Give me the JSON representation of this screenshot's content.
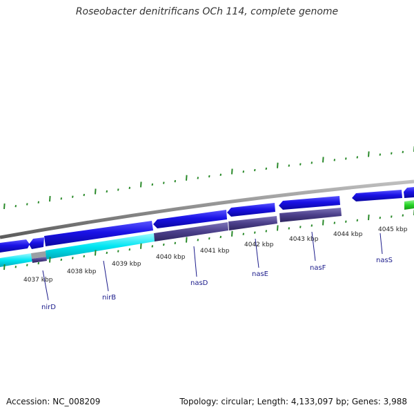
{
  "title": "Roseobacter denitrificans OCh 114, complete genome",
  "accession": "Accession: NC_008209",
  "stats": "Topology: circular; Length: 4,133,097 bp; Genes: 3,988",
  "colors": {
    "backbone": "#8c8c8c",
    "forward_cds": "#1a12e6",
    "reverse_cds": "#1a12e6",
    "rna": "#26d426",
    "nir_track": "#00e0ee",
    "nas_track": "#4b3f8a",
    "tick": "#2a8a2a",
    "label": "#1a1a8a"
  },
  "ticks": [
    {
      "label": "4037 kbp"
    },
    {
      "label": "4038 kbp"
    },
    {
      "label": "4039 kbp"
    },
    {
      "label": "4040 kbp"
    },
    {
      "label": "4041 kbp"
    },
    {
      "label": "4042 kbp"
    },
    {
      "label": "4043 kbp"
    },
    {
      "label": "4044 kbp"
    },
    {
      "label": "4045 kbp"
    }
  ],
  "genes": [
    {
      "name": "nirD"
    },
    {
      "name": "nirB"
    },
    {
      "name": "nasD"
    },
    {
      "name": "nasE"
    },
    {
      "name": "nasF"
    },
    {
      "name": "nasS"
    }
  ]
}
